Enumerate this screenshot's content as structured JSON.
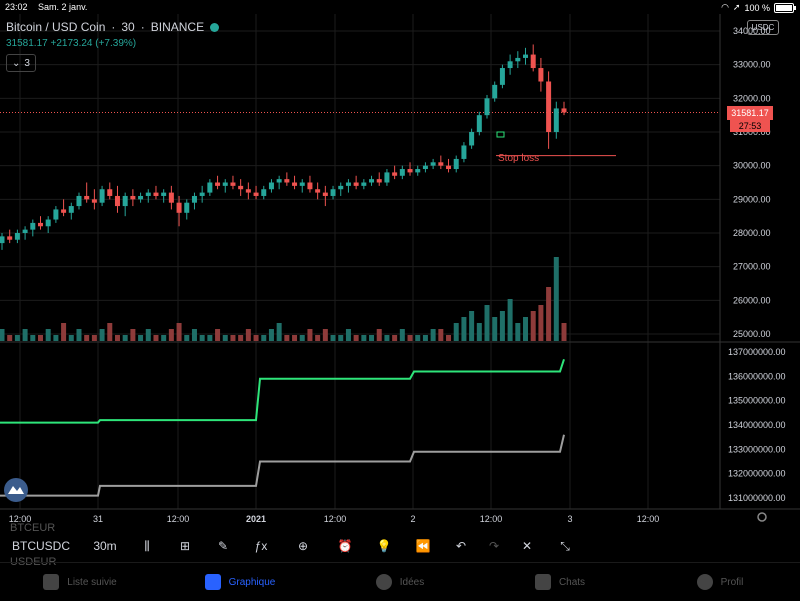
{
  "status_bar": {
    "time": "23:02",
    "date": "Sam. 2 janv.",
    "battery": "100 %"
  },
  "symbol": {
    "name": "Bitcoin / USD Coin",
    "interval": "30",
    "exchange": "BINANCE",
    "change": "31581.17 +2173.24 (+7.39%)",
    "collapse_count": "3",
    "currency": "USDC"
  },
  "price_axis": {
    "ticks": [
      "34000.00",
      "33000.00",
      "32000.00",
      "31000.00",
      "30000.00",
      "29000.00",
      "28000.00",
      "27000.00",
      "26000.00",
      "25000.00"
    ],
    "last_price": "31581.17",
    "countdown": "27:53"
  },
  "indicator_axis": {
    "ticks": [
      "137000000.00",
      "136000000.00",
      "135000000.00",
      "134000000.00",
      "133000000.00",
      "132000000.00",
      "131000000.00"
    ]
  },
  "time_axis": {
    "ticks": [
      "12:00",
      "31",
      "12:00",
      "2021",
      "12:00",
      "2",
      "12:00",
      "3",
      "12:00"
    ]
  },
  "annotation": {
    "stop_loss": "Stop loss"
  },
  "toolbar": {
    "symbol": "BTCUSDC",
    "interval": "30m",
    "ghost_top": "BTCEUR",
    "ghost_bottom": "USDEUR"
  },
  "tabs": [
    {
      "label": "Liste suivie",
      "icon": "list-icon"
    },
    {
      "label": "Graphique",
      "icon": "chart-icon"
    },
    {
      "label": "Idées",
      "icon": "lightbulb-icon"
    },
    {
      "label": "Chats",
      "icon": "chat-icon"
    },
    {
      "label": "Profil",
      "icon": "smiley-icon"
    }
  ],
  "colors": {
    "up": "#26a69a",
    "down": "#ef5350",
    "line1": "#2ee57a",
    "line2": "#9e9e9e",
    "active": "#2962ff"
  },
  "chart_data": {
    "type": "candlestick",
    "y_range": [
      25000,
      34000
    ],
    "candles": [
      [
        27700,
        28000,
        27500,
        27900
      ],
      [
        27900,
        28100,
        27700,
        27800
      ],
      [
        27800,
        28100,
        27700,
        28000
      ],
      [
        28000,
        28200,
        27800,
        28100
      ],
      [
        28100,
        28400,
        27900,
        28300
      ],
      [
        28300,
        28500,
        28100,
        28200
      ],
      [
        28200,
        28500,
        28000,
        28400
      ],
      [
        28400,
        28800,
        28300,
        28700
      ],
      [
        28700,
        29000,
        28500,
        28600
      ],
      [
        28600,
        28900,
        28400,
        28800
      ],
      [
        28800,
        29200,
        28700,
        29100
      ],
      [
        29100,
        29500,
        28900,
        29000
      ],
      [
        29000,
        29300,
        28700,
        28900
      ],
      [
        28900,
        29400,
        28800,
        29300
      ],
      [
        29300,
        29500,
        29000,
        29100
      ],
      [
        29100,
        29400,
        28600,
        28800
      ],
      [
        28800,
        29200,
        28500,
        29100
      ],
      [
        29100,
        29300,
        28800,
        29000
      ],
      [
        29000,
        29200,
        28900,
        29100
      ],
      [
        29100,
        29300,
        28900,
        29200
      ],
      [
        29200,
        29400,
        29000,
        29100
      ],
      [
        29100,
        29300,
        28900,
        29200
      ],
      [
        29200,
        29400,
        28700,
        28900
      ],
      [
        28900,
        29100,
        28200,
        28600
      ],
      [
        28600,
        29000,
        28400,
        28900
      ],
      [
        28900,
        29200,
        28700,
        29100
      ],
      [
        29100,
        29400,
        28900,
        29200
      ],
      [
        29200,
        29600,
        29100,
        29500
      ],
      [
        29500,
        29700,
        29300,
        29400
      ],
      [
        29400,
        29600,
        29200,
        29500
      ],
      [
        29500,
        29700,
        29300,
        29400
      ],
      [
        29400,
        29600,
        29100,
        29300
      ],
      [
        29300,
        29500,
        29000,
        29200
      ],
      [
        29200,
        29400,
        29000,
        29100
      ],
      [
        29100,
        29400,
        29000,
        29300
      ],
      [
        29300,
        29600,
        29200,
        29500
      ],
      [
        29500,
        29700,
        29300,
        29600
      ],
      [
        29600,
        29800,
        29400,
        29500
      ],
      [
        29500,
        29700,
        29300,
        29400
      ],
      [
        29400,
        29600,
        29200,
        29500
      ],
      [
        29500,
        29700,
        29200,
        29300
      ],
      [
        29300,
        29500,
        29000,
        29200
      ],
      [
        29200,
        29400,
        28800,
        29100
      ],
      [
        29100,
        29400,
        29000,
        29300
      ],
      [
        29300,
        29500,
        29100,
        29400
      ],
      [
        29400,
        29600,
        29200,
        29500
      ],
      [
        29500,
        29700,
        29300,
        29400
      ],
      [
        29400,
        29600,
        29300,
        29500
      ],
      [
        29500,
        29700,
        29400,
        29600
      ],
      [
        29600,
        29800,
        29400,
        29500
      ],
      [
        29500,
        29900,
        29400,
        29800
      ],
      [
        29800,
        30000,
        29600,
        29700
      ],
      [
        29700,
        30000,
        29600,
        29900
      ],
      [
        29900,
        30100,
        29700,
        29800
      ],
      [
        29800,
        30000,
        29700,
        29900
      ],
      [
        29900,
        30100,
        29800,
        30000
      ],
      [
        30000,
        30200,
        29900,
        30100
      ],
      [
        30100,
        30300,
        29900,
        30000
      ],
      [
        30000,
        30200,
        29800,
        29900
      ],
      [
        29900,
        30300,
        29800,
        30200
      ],
      [
        30200,
        30700,
        30100,
        30600
      ],
      [
        30600,
        31100,
        30500,
        31000
      ],
      [
        31000,
        31600,
        30900,
        31500
      ],
      [
        31500,
        32100,
        31400,
        32000
      ],
      [
        32000,
        32500,
        31900,
        32400
      ],
      [
        32400,
        33000,
        32300,
        32900
      ],
      [
        32900,
        33300,
        32700,
        33100
      ],
      [
        33100,
        33400,
        32900,
        33200
      ],
      [
        33200,
        33500,
        33000,
        33300
      ],
      [
        33300,
        33600,
        32800,
        32900
      ],
      [
        32900,
        33200,
        32200,
        32500
      ],
      [
        32500,
        32800,
        30500,
        31000
      ],
      [
        31000,
        31900,
        30800,
        31700
      ],
      [
        31700,
        31900,
        31500,
        31581
      ]
    ],
    "volumes": [
      2,
      1,
      1,
      2,
      1,
      1,
      2,
      1,
      3,
      1,
      2,
      1,
      1,
      2,
      3,
      1,
      1,
      2,
      1,
      2,
      1,
      1,
      2,
      3,
      1,
      2,
      1,
      1,
      2,
      1,
      1,
      1,
      2,
      1,
      1,
      2,
      3,
      1,
      1,
      1,
      2,
      1,
      2,
      1,
      1,
      2,
      1,
      1,
      1,
      2,
      1,
      1,
      2,
      1,
      1,
      1,
      2,
      2,
      1,
      3,
      4,
      5,
      3,
      6,
      4,
      5,
      7,
      3,
      4,
      5,
      6,
      9,
      14,
      3
    ],
    "indicator_series": [
      {
        "points": [
          [
            0,
            134100000
          ],
          [
            98,
            134100000
          ],
          [
            100,
            134200000
          ],
          [
            256,
            134200000
          ],
          [
            260,
            135900000
          ],
          [
            410,
            135900000
          ],
          [
            414,
            136200000
          ],
          [
            560,
            136200000
          ],
          [
            564,
            136700000
          ]
        ]
      },
      {
        "points": [
          [
            0,
            131100000
          ],
          [
            98,
            131100000
          ],
          [
            100,
            131500000
          ],
          [
            256,
            131500000
          ],
          [
            260,
            132500000
          ],
          [
            410,
            132500000
          ],
          [
            414,
            132900000
          ],
          [
            560,
            132900000
          ],
          [
            564,
            133600000
          ]
        ]
      }
    ],
    "indicator_range": [
      130500000,
      137500000
    ]
  }
}
